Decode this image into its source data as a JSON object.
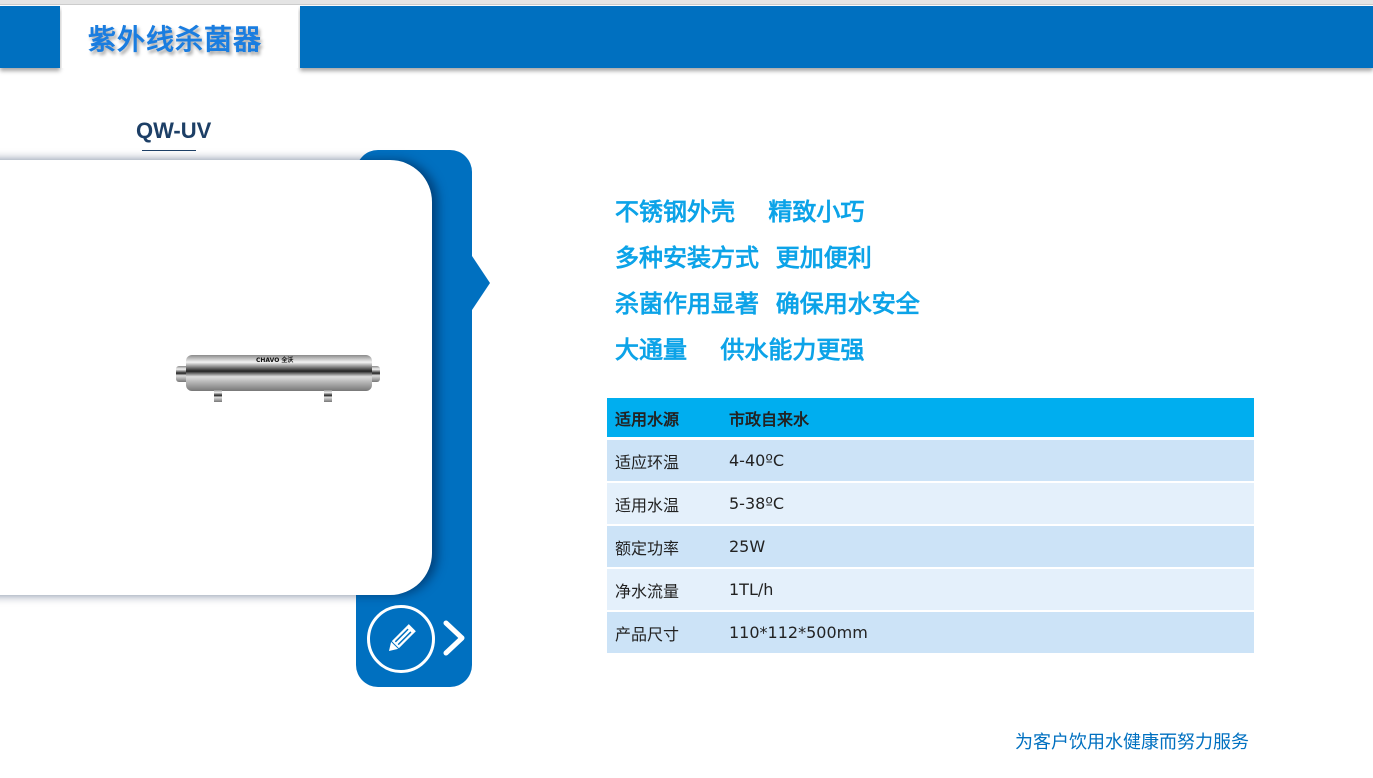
{
  "header": {
    "title": "紫外线杀菌器"
  },
  "product": {
    "model": "QW-UV",
    "brand": "CHAVO 全沃"
  },
  "features": [
    "不锈钢外壳    精致小巧",
    "多种安装方式  更加便利",
    "杀菌作用显著  确保用水安全",
    "大通量    供水能力更强"
  ],
  "specs": [
    {
      "label": "适用水源",
      "value": "市政自来水"
    },
    {
      "label": "适应环温",
      "value": "4-40ºC"
    },
    {
      "label": "适用水温",
      "value": "5-38ºC"
    },
    {
      "label": "额定功率",
      "value": "25W"
    },
    {
      "label": "净水流量",
      "value": "1TL/h"
    },
    {
      "label": "产品尺寸",
      "value": "110*112*500mm"
    }
  ],
  "footer": {
    "slogan": "为客户饮用水健康而努力服务"
  },
  "colors": {
    "brand": "#0070c0",
    "accent": "#00aeef",
    "feature_text": "#0ca3e8"
  }
}
